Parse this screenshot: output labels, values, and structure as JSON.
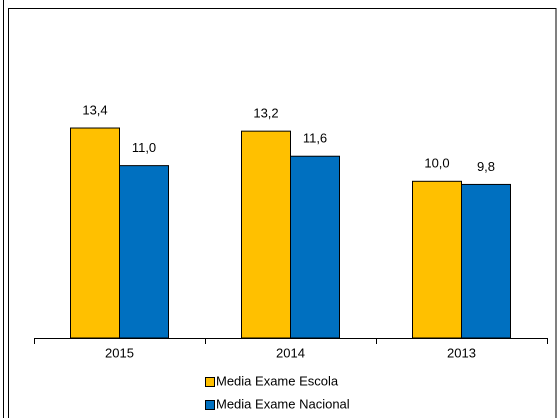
{
  "chart_data": {
    "type": "bar",
    "categories": [
      "2015",
      "2014",
      "2013"
    ],
    "series": [
      {
        "name": "Media Exame Escola",
        "color": "#ffc000",
        "values": [
          13.4,
          13.2,
          10.0
        ],
        "value_labels": [
          "13,4",
          "13,2",
          "10,0"
        ]
      },
      {
        "name": "Media Exame Nacional",
        "color": "#0070c0",
        "values": [
          11.0,
          11.6,
          9.8
        ],
        "value_labels": [
          "11,0",
          "11,6",
          "9,8"
        ]
      }
    ],
    "grid": false,
    "legend": "bottom"
  }
}
